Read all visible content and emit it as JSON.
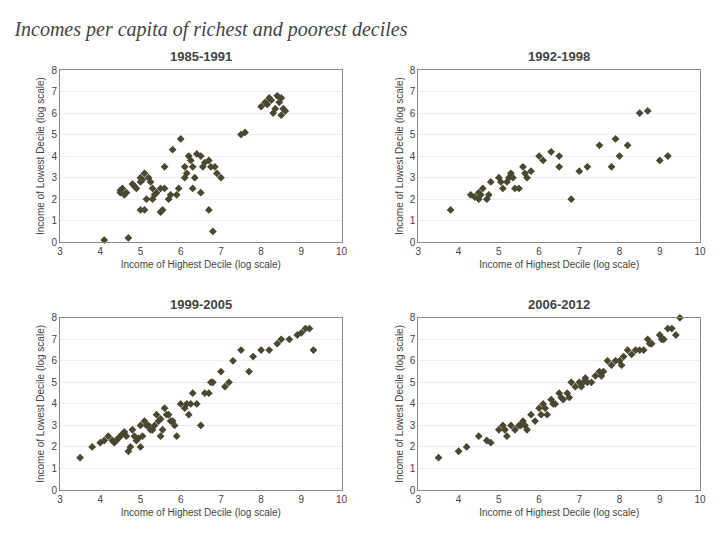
{
  "title": "Incomes per capita of richest and poorest deciles",
  "chart_data": [
    {
      "type": "scatter",
      "title": "1985-1991",
      "xlabel": "Income of Highest Decile (log scale)",
      "ylabel": "Income of Lowest Decile (log scale)",
      "x": [
        4.1,
        4.5,
        4.5,
        4.55,
        4.6,
        4.65,
        4.7,
        4.8,
        4.85,
        4.9,
        5.0,
        5.0,
        5.0,
        5.05,
        5.1,
        5.1,
        5.15,
        5.2,
        5.25,
        5.3,
        5.3,
        5.35,
        5.4,
        5.5,
        5.5,
        5.55,
        5.6,
        5.6,
        5.7,
        5.75,
        5.8,
        5.9,
        5.95,
        6.0,
        6.1,
        6.1,
        6.15,
        6.2,
        6.25,
        6.3,
        6.3,
        6.35,
        6.4,
        6.5,
        6.5,
        6.55,
        6.6,
        6.7,
        6.7,
        6.75,
        6.8,
        6.85,
        6.9,
        7.0,
        7.5,
        7.6,
        8.0,
        8.1,
        8.15,
        8.2,
        8.25,
        8.3,
        8.35,
        8.4,
        8.45,
        8.5,
        8.5,
        8.55,
        8.6
      ],
      "values": [
        0.1,
        2.4,
        2.3,
        2.5,
        2.2,
        2.3,
        0.2,
        2.7,
        2.6,
        2.5,
        2.8,
        3.0,
        1.5,
        2.9,
        3.2,
        1.5,
        2.0,
        3.0,
        2.8,
        2.5,
        2.0,
        2.2,
        2.3,
        2.5,
        1.4,
        1.5,
        3.5,
        2.5,
        2.0,
        2.2,
        4.3,
        2.2,
        2.5,
        4.8,
        3.5,
        3.0,
        3.2,
        4.0,
        3.8,
        3.5,
        2.5,
        3.0,
        4.1,
        2.3,
        4.0,
        3.5,
        3.7,
        3.8,
        1.5,
        3.5,
        0.5,
        3.5,
        3.2,
        3.0,
        5.0,
        5.1,
        6.3,
        6.5,
        6.4,
        6.7,
        6.6,
        6.0,
        6.2,
        6.8,
        6.5,
        6.7,
        5.9,
        6.2,
        6.1
      ],
      "color": "#4A4830",
      "marker": "diamond",
      "xlim": [
        3,
        10
      ],
      "ylim": [
        0,
        8
      ],
      "xticks": [
        3,
        4,
        5,
        6,
        7,
        8,
        9,
        10
      ],
      "yticks": [
        0,
        1,
        2,
        3,
        4,
        5,
        6,
        7,
        8
      ],
      "grid": "y"
    },
    {
      "type": "scatter",
      "title": "1992-1998",
      "xlabel": "Income of Highest Decile (log scale)",
      "ylabel": "Income of Lowest Decile (log scale)",
      "x": [
        3.8,
        4.3,
        4.4,
        4.5,
        4.5,
        4.55,
        4.6,
        4.7,
        4.75,
        4.8,
        5.0,
        5.05,
        5.1,
        5.2,
        5.25,
        5.3,
        5.35,
        5.4,
        5.5,
        5.6,
        5.65,
        5.7,
        5.8,
        6.0,
        6.1,
        6.3,
        6.5,
        6.5,
        6.8,
        7.0,
        7.2,
        7.5,
        7.8,
        7.9,
        8.0,
        8.2,
        8.5,
        8.7,
        9.0,
        9.2
      ],
      "values": [
        1.5,
        2.2,
        2.1,
        2.0,
        2.3,
        2.2,
        2.5,
        2.0,
        2.2,
        2.8,
        3.0,
        2.8,
        2.5,
        2.8,
        3.0,
        3.2,
        3.0,
        2.5,
        2.5,
        3.5,
        3.2,
        3.0,
        3.3,
        4.0,
        3.8,
        4.2,
        3.5,
        4.0,
        2.0,
        3.3,
        3.5,
        4.5,
        3.5,
        4.8,
        4.0,
        4.5,
        6.0,
        6.1,
        3.8,
        4.0
      ],
      "color": "#4A4830",
      "marker": "diamond",
      "xlim": [
        3,
        10
      ],
      "ylim": [
        0,
        8
      ],
      "xticks": [
        3,
        4,
        5,
        6,
        7,
        8,
        9,
        10
      ],
      "yticks": [
        0,
        1,
        2,
        3,
        4,
        5,
        6,
        7,
        8
      ],
      "grid": "y"
    },
    {
      "type": "scatter",
      "title": "1999-2005",
      "xlabel": "Income of Highest Decile (log scale)",
      "ylabel": "Income of Lowest Decile (log scale)",
      "x": [
        3.5,
        3.8,
        4.0,
        4.1,
        4.2,
        4.3,
        4.35,
        4.4,
        4.45,
        4.5,
        4.55,
        4.6,
        4.65,
        4.7,
        4.75,
        4.8,
        4.85,
        4.9,
        4.95,
        5.0,
        5.0,
        5.05,
        5.1,
        5.15,
        5.2,
        5.25,
        5.3,
        5.35,
        5.4,
        5.45,
        5.5,
        5.5,
        5.55,
        5.6,
        5.65,
        5.7,
        5.75,
        5.8,
        5.85,
        5.9,
        6.0,
        6.1,
        6.15,
        6.2,
        6.25,
        6.3,
        6.4,
        6.5,
        6.6,
        6.7,
        6.75,
        6.8,
        7.0,
        7.1,
        7.2,
        7.3,
        7.5,
        7.7,
        7.8,
        8.0,
        8.2,
        8.4,
        8.5,
        8.7,
        8.9,
        9.0,
        9.1,
        9.2,
        9.3
      ],
      "values": [
        1.5,
        2.0,
        2.2,
        2.3,
        2.5,
        2.3,
        2.2,
        2.3,
        2.4,
        2.5,
        2.6,
        2.7,
        2.5,
        1.8,
        2.0,
        2.8,
        2.5,
        2.3,
        2.4,
        3.0,
        2.0,
        2.5,
        3.2,
        3.0,
        3.0,
        2.8,
        2.8,
        3.0,
        3.5,
        3.2,
        3.3,
        2.5,
        2.8,
        3.8,
        3.5,
        3.5,
        3.2,
        3.2,
        3.0,
        2.5,
        4.0,
        3.8,
        4.0,
        3.5,
        4.0,
        4.5,
        4.0,
        3.0,
        4.5,
        4.5,
        5.0,
        5.0,
        5.5,
        4.8,
        5.0,
        6.0,
        6.5,
        5.5,
        6.2,
        6.5,
        6.5,
        6.8,
        7.0,
        7.0,
        7.2,
        7.3,
        7.5,
        7.5,
        6.5
      ],
      "color": "#4A4830",
      "marker": "diamond",
      "xlim": [
        3,
        10
      ],
      "ylim": [
        0,
        8
      ],
      "xticks": [
        3,
        4,
        5,
        6,
        7,
        8,
        9,
        10
      ],
      "yticks": [
        0,
        1,
        2,
        3,
        4,
        5,
        6,
        7,
        8
      ],
      "grid": "y"
    },
    {
      "type": "scatter",
      "title": "2006-2012",
      "xlabel": "Income of Highest Decile (log scale)",
      "ylabel": "Income of Lowest Decile (log scale)",
      "x": [
        3.5,
        4.0,
        4.2,
        4.5,
        4.7,
        4.8,
        5.0,
        5.1,
        5.15,
        5.2,
        5.3,
        5.4,
        5.5,
        5.55,
        5.6,
        5.65,
        5.7,
        5.8,
        5.9,
        6.0,
        6.05,
        6.1,
        6.15,
        6.2,
        6.3,
        6.35,
        6.4,
        6.5,
        6.55,
        6.6,
        6.7,
        6.75,
        6.8,
        6.9,
        7.0,
        7.05,
        7.1,
        7.15,
        7.2,
        7.3,
        7.4,
        7.5,
        7.55,
        7.6,
        7.7,
        7.8,
        7.9,
        8.0,
        8.05,
        8.1,
        8.2,
        8.3,
        8.4,
        8.5,
        8.6,
        8.7,
        8.75,
        8.8,
        9.0,
        9.05,
        9.1,
        9.2,
        9.3,
        9.4,
        9.5
      ],
      "values": [
        1.5,
        1.8,
        2.0,
        2.5,
        2.3,
        2.2,
        2.8,
        3.0,
        2.8,
        2.5,
        3.0,
        2.8,
        3.0,
        3.0,
        3.2,
        3.0,
        2.8,
        3.5,
        3.2,
        3.8,
        3.5,
        4.0,
        3.8,
        3.5,
        4.2,
        4.0,
        4.0,
        4.5,
        4.3,
        4.2,
        4.5,
        4.3,
        5.0,
        4.8,
        5.0,
        4.8,
        5.0,
        5.2,
        5.0,
        5.0,
        5.3,
        5.5,
        5.3,
        5.5,
        6.0,
        5.8,
        6.0,
        6.0,
        5.8,
        6.2,
        6.5,
        6.3,
        6.5,
        6.5,
        6.5,
        7.0,
        6.8,
        6.8,
        7.2,
        7.0,
        7.0,
        7.5,
        7.5,
        7.2,
        8.0
      ],
      "color": "#4A4830",
      "marker": "diamond",
      "xlim": [
        3,
        10
      ],
      "ylim": [
        0,
        8
      ],
      "xticks": [
        3,
        4,
        5,
        6,
        7,
        8,
        9,
        10
      ],
      "yticks": [
        0,
        1,
        2,
        3,
        4,
        5,
        6,
        7,
        8
      ],
      "grid": "y"
    }
  ]
}
